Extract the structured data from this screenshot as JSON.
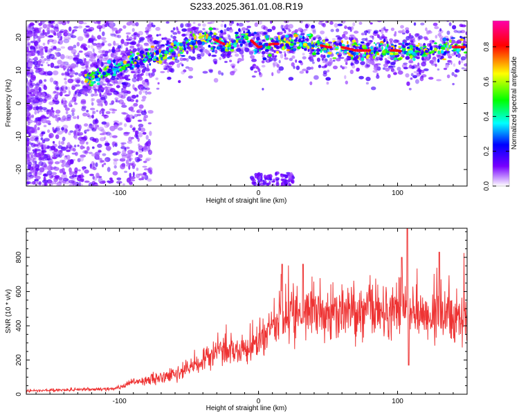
{
  "title": "S233.2025.361.01.08.R19",
  "chart_data": [
    {
      "type": "heatmap",
      "xlabel": "Height of straight line (km)",
      "ylabel": "Frequency (Hz)",
      "xlim": [
        -167,
        150
      ],
      "ylim": [
        -25,
        25
      ],
      "xticks": [
        -100,
        0,
        100
      ],
      "yticks": [
        -20,
        -10,
        0,
        10,
        20
      ],
      "colorbar": {
        "label": "Normalized spectral amplitude",
        "range": [
          0,
          0.95
        ],
        "ticks": [
          0.0,
          0.2,
          0.4,
          0.6,
          0.8
        ],
        "colors": [
          "#ffffff",
          "#7700ff",
          "#0000ff",
          "#00ffff",
          "#00ff00",
          "#ffff00",
          "#ff0000",
          "#ff00aa"
        ]
      },
      "ridge": {
        "x": [
          -120,
          -100,
          -80,
          -60,
          -50,
          -40,
          -35,
          -30,
          -25,
          -20,
          -15,
          -10,
          -5,
          0,
          10,
          20,
          30,
          40,
          50,
          60,
          70,
          80,
          90,
          100,
          110,
          120,
          130,
          140,
          150
        ],
        "y": [
          8,
          11,
          14,
          16,
          18,
          20,
          20,
          19,
          18,
          17,
          19,
          21,
          19,
          17,
          18,
          18,
          19,
          18,
          17,
          17,
          16,
          16,
          16,
          16,
          15,
          16,
          16,
          17,
          17
        ]
      }
    },
    {
      "type": "line",
      "xlabel": "Height of straight line (km)",
      "ylabel": "SNR (10 * v/v)",
      "xlim": [
        -167,
        150
      ],
      "ylim": [
        0,
        970
      ],
      "xticks": [
        -100,
        0,
        100
      ],
      "yticks": [
        0,
        200,
        400,
        600,
        800
      ],
      "color": "#ee3333",
      "envelope": {
        "x": [
          -167,
          -140,
          -110,
          -100,
          -90,
          -80,
          -60,
          -50,
          -40,
          -30,
          -20,
          -10,
          0,
          10,
          20,
          30,
          40,
          50,
          60,
          70,
          80,
          90,
          100,
          110,
          120,
          130,
          140,
          150
        ],
        "y": [
          20,
          25,
          30,
          40,
          70,
          80,
          110,
          150,
          200,
          250,
          250,
          250,
          300,
          400,
          450,
          500,
          500,
          480,
          470,
          460,
          470,
          480,
          480,
          500,
          480,
          470,
          450,
          460
        ]
      },
      "peaks": [
        {
          "x": 107,
          "y": 970
        },
        {
          "x": 103,
          "y": 800
        },
        {
          "x": 130,
          "y": 830
        },
        {
          "x": 17,
          "y": 760
        },
        {
          "x": 32,
          "y": 760
        },
        {
          "x": 108,
          "y": 170
        }
      ]
    }
  ]
}
